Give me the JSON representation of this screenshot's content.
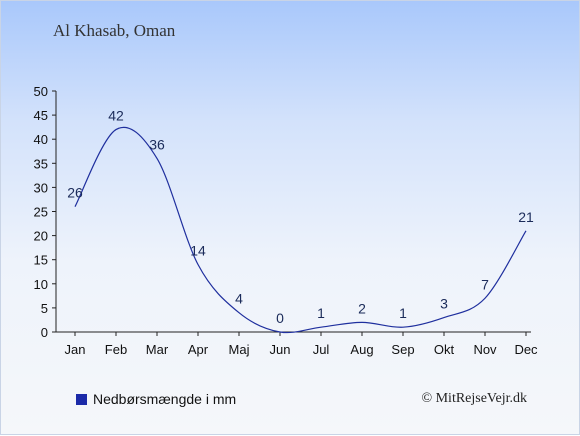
{
  "chart_data": {
    "type": "line",
    "title": "Al Khasab, Oman",
    "categories": [
      "Jan",
      "Feb",
      "Mar",
      "Apr",
      "Maj",
      "Jun",
      "Jul",
      "Aug",
      "Sep",
      "Okt",
      "Nov",
      "Dec"
    ],
    "series": [
      {
        "name": "Nedbørsmængde i mm",
        "values": [
          26,
          42,
          36,
          14,
          4,
          0,
          1,
          2,
          1,
          3,
          7,
          21
        ]
      }
    ],
    "ylim": [
      0,
      50
    ],
    "yticks": [
      0,
      5,
      10,
      15,
      20,
      25,
      30,
      35,
      40,
      45,
      50
    ],
    "grid": false,
    "legend_position": "bottom-left",
    "line_color": "#1f2f9e",
    "swatch_color": "#1b2aa8"
  },
  "credit": "© MitRejseVejr.dk"
}
